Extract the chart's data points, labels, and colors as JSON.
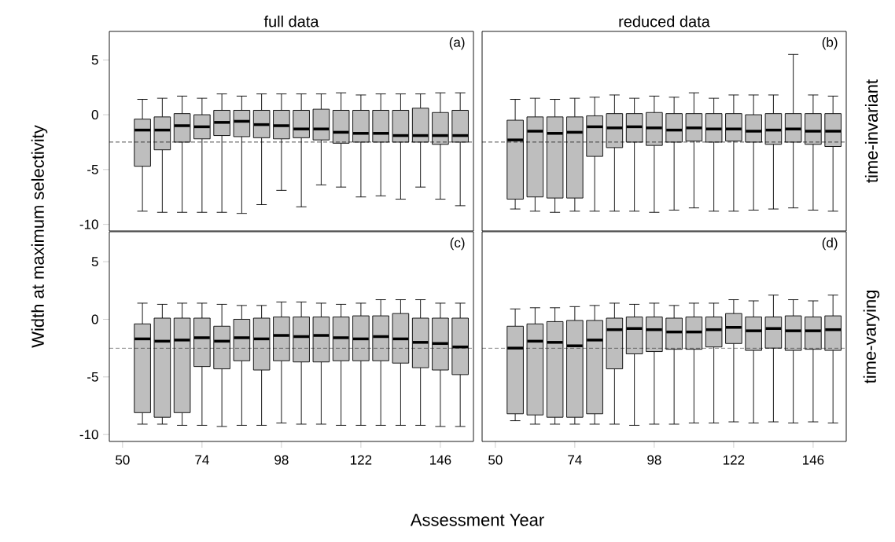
{
  "chart_data": [
    {
      "type": "box",
      "title": "full data",
      "ylabel": "Width at maximum selectivity",
      "annotations": [
        "(a)"
      ],
      "color": "#bebebe",
      "tick_labels": "y",
      "x": [
        56,
        62,
        68,
        74,
        80,
        86,
        92,
        98,
        104,
        110,
        116,
        122,
        128,
        134,
        140,
        146,
        152
      ],
      "xlim": [
        46,
        156
      ],
      "ylim": [
        -10.6,
        7.6
      ],
      "xticks": [
        50,
        74,
        98,
        122,
        146
      ],
      "yticks": [
        -10,
        -5,
        0,
        5
      ],
      "ref_lines": [
        {
          "axis": "y",
          "value": -2.5,
          "line_style": "dashed"
        }
      ],
      "boxes": [
        {
          "low": -8.8,
          "q1": -4.7,
          "median": -1.4,
          "q3": -0.4,
          "high": 1.4
        },
        {
          "low": -8.9,
          "q1": -3.2,
          "median": -1.4,
          "q3": -0.2,
          "high": 1.5
        },
        {
          "low": -8.9,
          "q1": -2.5,
          "median": -1.0,
          "q3": 0.1,
          "high": 1.7
        },
        {
          "low": -8.9,
          "q1": -2.2,
          "median": -1.1,
          "q3": 0.0,
          "high": 1.5
        },
        {
          "low": -8.9,
          "q1": -1.9,
          "median": -0.7,
          "q3": 0.4,
          "high": 1.9
        },
        {
          "low": -9.0,
          "q1": -2.0,
          "median": -0.6,
          "q3": 0.4,
          "high": 1.7
        },
        {
          "low": -8.2,
          "q1": -2.1,
          "median": -0.9,
          "q3": 0.4,
          "high": 1.9
        },
        {
          "low": -6.9,
          "q1": -2.2,
          "median": -1.0,
          "q3": 0.4,
          "high": 1.9
        },
        {
          "low": -8.4,
          "q1": -2.1,
          "median": -1.3,
          "q3": 0.4,
          "high": 1.9
        },
        {
          "low": -6.4,
          "q1": -2.3,
          "median": -1.3,
          "q3": 0.5,
          "high": 1.9
        },
        {
          "low": -6.6,
          "q1": -2.6,
          "median": -1.6,
          "q3": 0.4,
          "high": 2.0
        },
        {
          "low": -7.5,
          "q1": -2.5,
          "median": -1.7,
          "q3": 0.4,
          "high": 1.8
        },
        {
          "low": -7.4,
          "q1": -2.5,
          "median": -1.7,
          "q3": 0.4,
          "high": 1.9
        },
        {
          "low": -7.7,
          "q1": -2.5,
          "median": -1.9,
          "q3": 0.4,
          "high": 1.9
        },
        {
          "low": -6.6,
          "q1": -2.5,
          "median": -1.9,
          "q3": 0.6,
          "high": 1.9
        },
        {
          "low": -7.7,
          "q1": -2.7,
          "median": -1.9,
          "q3": 0.2,
          "high": 2.0
        },
        {
          "low": -8.3,
          "q1": -2.5,
          "median": -1.9,
          "q3": 0.4,
          "high": 2.0
        }
      ]
    },
    {
      "type": "box",
      "title": "reduced data",
      "y2label": "time-invariant",
      "annotations": [
        "(b)"
      ],
      "color": "#bebebe",
      "tick_labels": false,
      "x": [
        56,
        62,
        68,
        74,
        80,
        86,
        92,
        98,
        104,
        110,
        116,
        122,
        128,
        134,
        140,
        146,
        152
      ],
      "xlim": [
        46,
        156
      ],
      "ylim": [
        -10.6,
        7.6
      ],
      "xticks": [
        50,
        74,
        98,
        122,
        146
      ],
      "yticks": [
        -10,
        -5,
        0,
        5
      ],
      "ref_lines": [
        {
          "axis": "y",
          "value": -2.5,
          "line_style": "dashed"
        }
      ],
      "boxes": [
        {
          "low": -8.6,
          "q1": -7.7,
          "median": -2.3,
          "q3": -0.5,
          "high": 1.4
        },
        {
          "low": -8.8,
          "q1": -7.5,
          "median": -1.5,
          "q3": -0.2,
          "high": 1.5
        },
        {
          "low": -8.9,
          "q1": -7.6,
          "median": -1.7,
          "q3": -0.2,
          "high": 1.4
        },
        {
          "low": -8.8,
          "q1": -7.6,
          "median": -1.6,
          "q3": -0.2,
          "high": 1.5
        },
        {
          "low": -8.8,
          "q1": -3.8,
          "median": -1.1,
          "q3": -0.1,
          "high": 1.6
        },
        {
          "low": -8.8,
          "q1": -3.0,
          "median": -1.2,
          "q3": 0.1,
          "high": 1.8
        },
        {
          "low": -8.8,
          "q1": -2.5,
          "median": -1.1,
          "q3": 0.1,
          "high": 1.5
        },
        {
          "low": -8.9,
          "q1": -2.8,
          "median": -1.2,
          "q3": 0.2,
          "high": 1.7
        },
        {
          "low": -8.7,
          "q1": -2.5,
          "median": -1.4,
          "q3": 0.1,
          "high": 1.6
        },
        {
          "low": -8.5,
          "q1": -2.4,
          "median": -1.2,
          "q3": 0.1,
          "high": 2.0
        },
        {
          "low": -8.8,
          "q1": -2.5,
          "median": -1.3,
          "q3": 0.1,
          "high": 1.5
        },
        {
          "low": -8.8,
          "q1": -2.4,
          "median": -1.3,
          "q3": 0.1,
          "high": 1.8
        },
        {
          "low": -8.7,
          "q1": -2.5,
          "median": -1.5,
          "q3": 0.0,
          "high": 1.8
        },
        {
          "low": -8.6,
          "q1": -2.7,
          "median": -1.4,
          "q3": 0.1,
          "high": 1.8
        },
        {
          "low": -8.5,
          "q1": -2.5,
          "median": -1.3,
          "q3": 0.1,
          "high": 5.5
        },
        {
          "low": -8.7,
          "q1": -2.7,
          "median": -1.5,
          "q3": 0.1,
          "high": 1.8
        },
        {
          "low": -8.8,
          "q1": -2.9,
          "median": -1.5,
          "q3": 0.1,
          "high": 1.7
        }
      ]
    },
    {
      "type": "box",
      "xlabel": "Assessment Year",
      "annotations": [
        "(c)"
      ],
      "color": "#bebebe",
      "x": [
        56,
        62,
        68,
        74,
        80,
        86,
        92,
        98,
        104,
        110,
        116,
        122,
        128,
        134,
        140,
        146,
        152
      ],
      "xlim": [
        46,
        156
      ],
      "ylim": [
        -10.6,
        7.6
      ],
      "xticks": [
        50,
        74,
        98,
        122,
        146
      ],
      "yticks": [
        -10,
        -5,
        0,
        5
      ],
      "ref_lines": [
        {
          "axis": "y",
          "value": -2.5,
          "line_style": "dashed"
        }
      ],
      "boxes": [
        {
          "low": -9.1,
          "q1": -8.1,
          "median": -1.7,
          "q3": -0.4,
          "high": 1.4
        },
        {
          "low": -9.1,
          "q1": -8.5,
          "median": -1.9,
          "q3": 0.1,
          "high": 1.3
        },
        {
          "low": -9.2,
          "q1": -8.1,
          "median": -1.8,
          "q3": 0.1,
          "high": 1.4
        },
        {
          "low": -9.2,
          "q1": -4.1,
          "median": -1.6,
          "q3": 0.1,
          "high": 1.4
        },
        {
          "low": -9.3,
          "q1": -4.3,
          "median": -1.9,
          "q3": -0.6,
          "high": 1.3
        },
        {
          "low": -9.2,
          "q1": -3.6,
          "median": -1.6,
          "q3": 0.0,
          "high": 1.2
        },
        {
          "low": -9.2,
          "q1": -4.4,
          "median": -1.7,
          "q3": 0.1,
          "high": 1.2
        },
        {
          "low": -9.0,
          "q1": -3.6,
          "median": -1.4,
          "q3": 0.2,
          "high": 1.5
        },
        {
          "low": -9.1,
          "q1": -3.7,
          "median": -1.5,
          "q3": 0.2,
          "high": 1.5
        },
        {
          "low": -9.1,
          "q1": -3.7,
          "median": -1.4,
          "q3": 0.2,
          "high": 1.4
        },
        {
          "low": -9.2,
          "q1": -3.6,
          "median": -1.6,
          "q3": 0.2,
          "high": 1.3
        },
        {
          "low": -9.2,
          "q1": -3.6,
          "median": -1.7,
          "q3": 0.3,
          "high": 1.4
        },
        {
          "low": -9.2,
          "q1": -3.6,
          "median": -1.5,
          "q3": 0.3,
          "high": 1.7
        },
        {
          "low": -9.2,
          "q1": -3.8,
          "median": -1.7,
          "q3": 0.5,
          "high": 1.7
        },
        {
          "low": -9.2,
          "q1": -4.2,
          "median": -2.0,
          "q3": 0.1,
          "high": 1.7
        },
        {
          "low": -9.3,
          "q1": -4.4,
          "median": -2.1,
          "q3": 0.1,
          "high": 1.4
        },
        {
          "low": -9.3,
          "q1": -4.8,
          "median": -2.4,
          "q3": 0.1,
          "high": 1.4
        }
      ]
    },
    {
      "type": "box",
      "y2label": "time-varying",
      "annotations": [
        "(d)"
      ],
      "color": "#bebebe",
      "tick_labels": "x",
      "x": [
        56,
        62,
        68,
        74,
        80,
        86,
        92,
        98,
        104,
        110,
        116,
        122,
        128,
        134,
        140,
        146,
        152
      ],
      "xlim": [
        46,
        156
      ],
      "ylim": [
        -10.6,
        7.6
      ],
      "xticks": [
        50,
        74,
        98,
        122,
        146
      ],
      "yticks": [
        -10,
        -5,
        0,
        5
      ],
      "ref_lines": [
        {
          "axis": "y",
          "value": -2.5,
          "line_style": "dashed"
        }
      ],
      "boxes": [
        {
          "low": -8.8,
          "q1": -8.2,
          "median": -2.5,
          "q3": -0.6,
          "high": 0.9
        },
        {
          "low": -9.1,
          "q1": -8.3,
          "median": -1.9,
          "q3": -0.4,
          "high": 1.0
        },
        {
          "low": -9.1,
          "q1": -8.5,
          "median": -2.0,
          "q3": -0.2,
          "high": 1.0
        },
        {
          "low": -9.1,
          "q1": -8.5,
          "median": -2.3,
          "q3": -0.1,
          "high": 1.1
        },
        {
          "low": -9.1,
          "q1": -8.2,
          "median": -1.8,
          "q3": -0.1,
          "high": 1.2
        },
        {
          "low": -9.1,
          "q1": -4.3,
          "median": -0.9,
          "q3": 0.1,
          "high": 1.4
        },
        {
          "low": -9.2,
          "q1": -3.0,
          "median": -0.8,
          "q3": 0.2,
          "high": 1.3
        },
        {
          "low": -9.1,
          "q1": -2.8,
          "median": -0.9,
          "q3": 0.2,
          "high": 1.4
        },
        {
          "low": -9.1,
          "q1": -2.6,
          "median": -1.1,
          "q3": 0.1,
          "high": 1.2
        },
        {
          "low": -9.0,
          "q1": -2.6,
          "median": -1.1,
          "q3": 0.2,
          "high": 1.4
        },
        {
          "low": -9.0,
          "q1": -2.4,
          "median": -0.9,
          "q3": 0.2,
          "high": 1.4
        },
        {
          "low": -8.9,
          "q1": -2.1,
          "median": -0.7,
          "q3": 0.5,
          "high": 1.7
        },
        {
          "low": -9.0,
          "q1": -2.7,
          "median": -1.0,
          "q3": 0.2,
          "high": 1.6
        },
        {
          "low": -8.9,
          "q1": -2.5,
          "median": -0.8,
          "q3": 0.2,
          "high": 2.1
        },
        {
          "low": -9.0,
          "q1": -2.7,
          "median": -1.0,
          "q3": 0.3,
          "high": 1.7
        },
        {
          "low": -8.9,
          "q1": -2.6,
          "median": -1.0,
          "q3": 0.2,
          "high": 1.6
        },
        {
          "low": -9.0,
          "q1": -2.7,
          "median": -0.9,
          "q3": 0.3,
          "high": 2.1
        }
      ]
    }
  ]
}
